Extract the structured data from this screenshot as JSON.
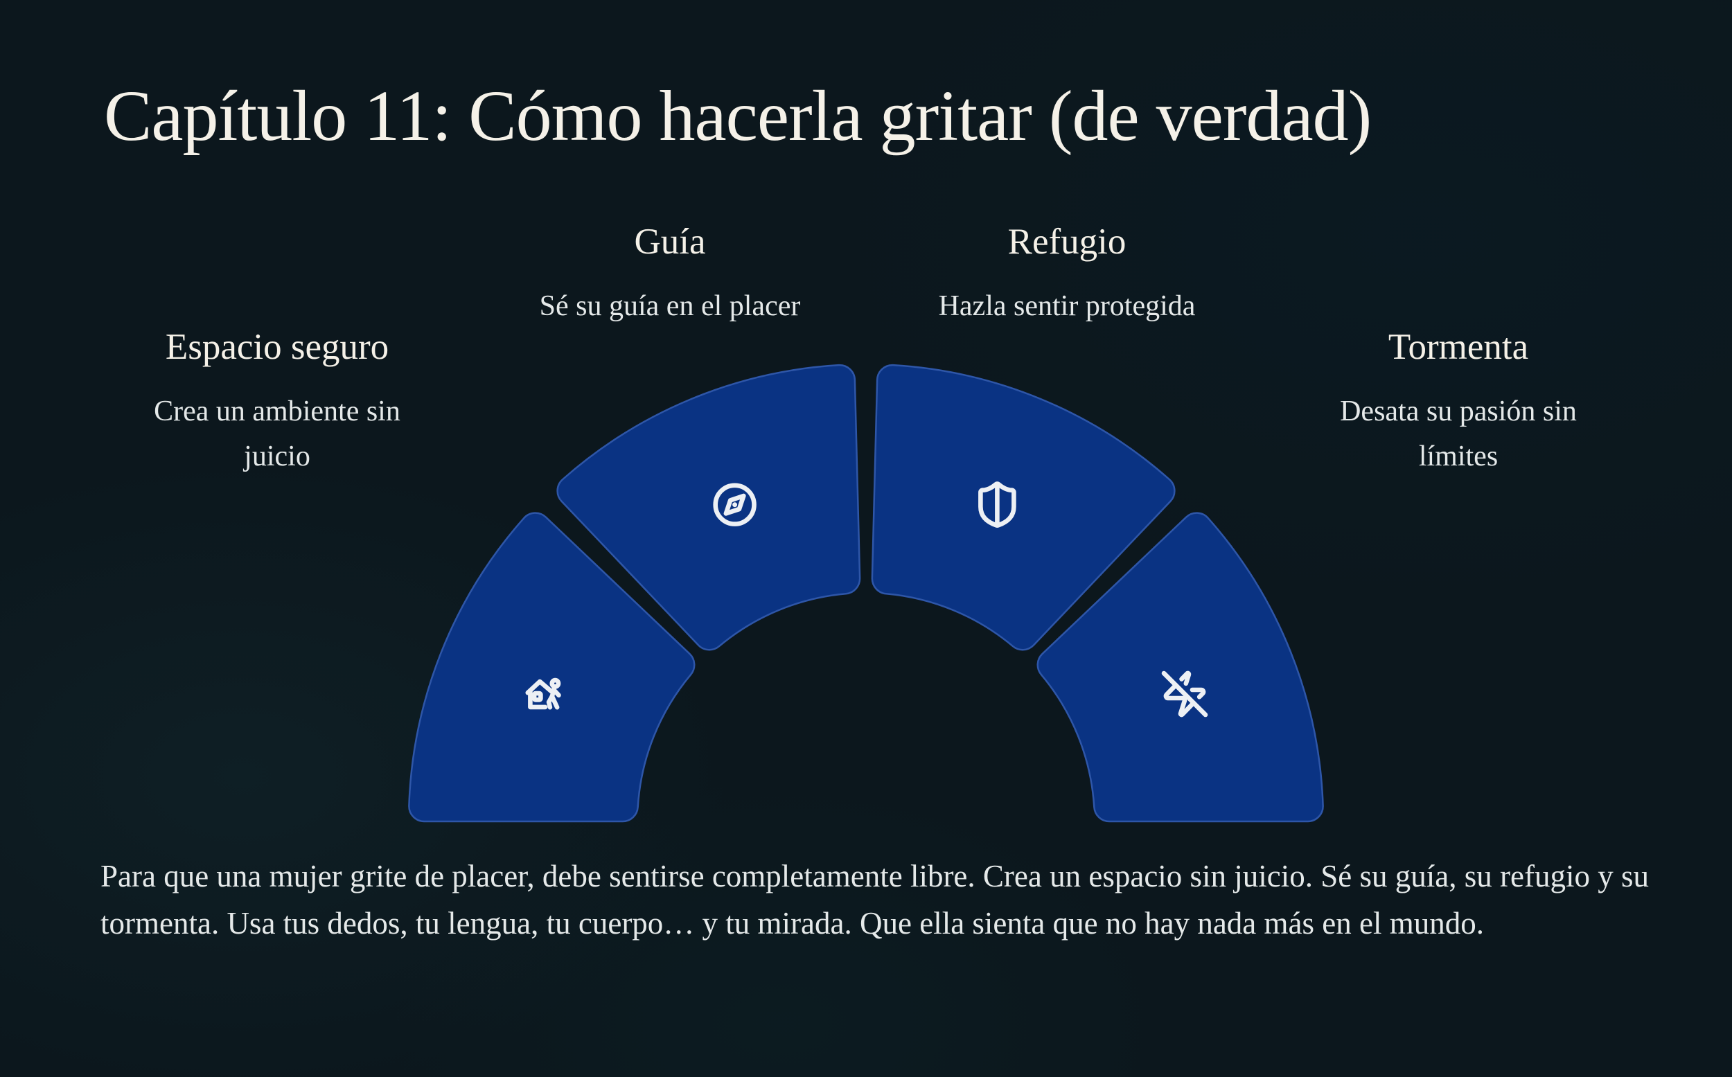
{
  "title": "Capítulo 11: Cómo hacerla gritar (de verdad)",
  "sections": [
    {
      "id": "espacio-seguro",
      "heading": "Espacio seguro",
      "description": "Crea un ambiente sin juicio",
      "icon": "house-user-icon"
    },
    {
      "id": "guia",
      "heading": "Guía",
      "description": "Sé su guía en el placer",
      "icon": "compass-icon"
    },
    {
      "id": "refugio",
      "heading": "Refugio",
      "description": "Hazla sentir protegida",
      "icon": "shield-icon"
    },
    {
      "id": "tormenta",
      "heading": "Tormenta",
      "description": "Desata su pasión sin límites",
      "icon": "zap-off-icon"
    }
  ],
  "paragraph": "Para que una mujer grite de placer, debe sentirse completamente libre. Crea un espacio sin juicio. Sé su guía, su refugio y su tormenta. Usa tus dedos, tu lengua, tu cuerpo… y tu mirada. Que ella sienta que no hay nada más en el mundo.",
  "colors": {
    "background": "#0c171d",
    "segment_fill": "#0a3383",
    "segment_border": "#2e56a8",
    "text_primary": "#f5f1e8",
    "text_secondary": "#e5e9e9",
    "icon": "#edf0f4"
  }
}
